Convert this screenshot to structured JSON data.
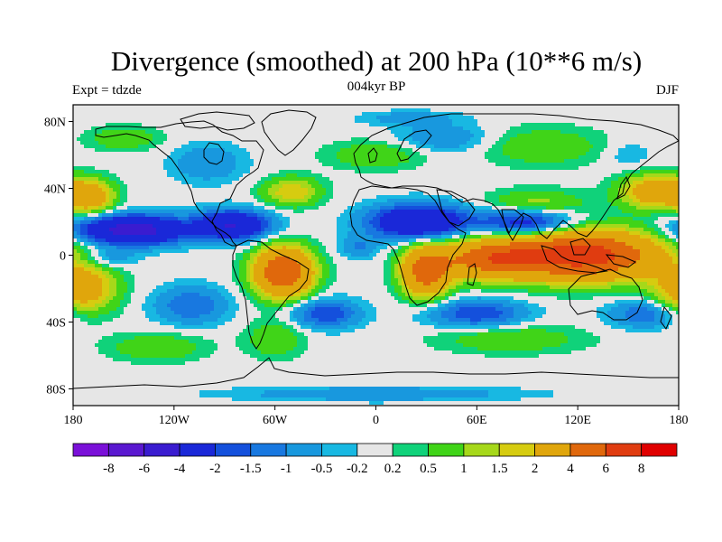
{
  "figure": {
    "title": "Divergence (smoothed) at 200 hPa (10**6 m/s)",
    "subtitle": "004kyr BP",
    "left_label": "Expt = tdzde",
    "right_label": "DJF"
  },
  "map": {
    "lat_ticks": [
      {
        "lat": 80,
        "label": "80N"
      },
      {
        "lat": 40,
        "label": "40N"
      },
      {
        "lat": 0,
        "label": "0"
      },
      {
        "lat": -40,
        "label": "40S"
      },
      {
        "lat": -80,
        "label": "80S"
      }
    ],
    "lon_ticks": [
      {
        "lon": -180,
        "label": "180"
      },
      {
        "lon": -120,
        "label": "120W"
      },
      {
        "lon": -60,
        "label": "60W"
      },
      {
        "lon": 0,
        "label": "0"
      },
      {
        "lon": 60,
        "label": "60E"
      },
      {
        "lon": 120,
        "label": "120E"
      },
      {
        "lon": 180,
        "label": "180"
      }
    ]
  },
  "colorbar": {
    "colors": [
      "#7a10d8",
      "#5a18d0",
      "#3a1cd0",
      "#1a28d8",
      "#1450dc",
      "#1878e0",
      "#1898de",
      "#18b8e2",
      "#e6e6e6",
      "#10d27a",
      "#40d418",
      "#a6d81a",
      "#d6cc10",
      "#e0a60c",
      "#e0680c",
      "#e03c10",
      "#e00000"
    ],
    "labels": [
      "-8",
      "-6",
      "-4",
      "-2",
      "-1.5",
      "-1",
      "-0.5",
      "-0.2",
      "0.2",
      "0.5",
      "1",
      "1.5",
      "2",
      "4",
      "6",
      "8"
    ]
  },
  "chart_data": {
    "type": "heatmap",
    "title": "Divergence (smoothed) at 200 hPa (10**6 m/s)",
    "subtitle": "004kyr BP",
    "season": "DJF",
    "experiment": "tdzde",
    "units": "10**6 m/s",
    "xlim": [
      -180,
      180
    ],
    "ylim": [
      -90,
      90
    ],
    "contour_levels": [
      -8,
      -6,
      -4,
      -2,
      -1.5,
      -1,
      -0.5,
      -0.2,
      0.2,
      0.5,
      1,
      1.5,
      2,
      4,
      6,
      8
    ],
    "features": [
      {
        "lon": 125,
        "lat": 0,
        "value": 7,
        "sx": 30,
        "sy": 10
      },
      {
        "lon": 70,
        "lat": -2,
        "value": 5,
        "sx": 22,
        "sy": 8
      },
      {
        "lon": 30,
        "lat": -10,
        "value": 5,
        "sx": 10,
        "sy": 10
      },
      {
        "lon": -55,
        "lat": -10,
        "value": 6,
        "sx": 12,
        "sy": 10
      },
      {
        "lon": -175,
        "lat": -20,
        "value": 3,
        "sx": 14,
        "sy": 10
      },
      {
        "lon": 165,
        "lat": 38,
        "value": 3,
        "sx": 14,
        "sy": 7
      },
      {
        "lon": -170,
        "lat": 35,
        "value": 3,
        "sx": 10,
        "sy": 7
      },
      {
        "lon": -50,
        "lat": 38,
        "value": 2,
        "sx": 12,
        "sy": 6
      },
      {
        "lon": 95,
        "lat": 30,
        "value": 1.5,
        "sx": 20,
        "sy": 6
      },
      {
        "lon": 0,
        "lat": 60,
        "value": 1,
        "sx": 20,
        "sy": 6
      },
      {
        "lon": 100,
        "lat": 65,
        "value": 1,
        "sx": 25,
        "sy": 8
      },
      {
        "lon": -150,
        "lat": 70,
        "value": 1,
        "sx": 15,
        "sy": 5
      },
      {
        "lon": -60,
        "lat": -50,
        "value": 1,
        "sx": 12,
        "sy": 8
      },
      {
        "lon": -130,
        "lat": -55,
        "value": 1,
        "sx": 20,
        "sy": 6
      },
      {
        "lon": 80,
        "lat": -50,
        "value": 1,
        "sx": 30,
        "sy": 6
      },
      {
        "lon": -145,
        "lat": 15,
        "value": -5,
        "sx": 22,
        "sy": 6
      },
      {
        "lon": -85,
        "lat": 18,
        "value": -4,
        "sx": 15,
        "sy": 6
      },
      {
        "lon": 25,
        "lat": 20,
        "value": -4,
        "sx": 20,
        "sy": 7
      },
      {
        "lon": 90,
        "lat": 20,
        "value": -3,
        "sx": 20,
        "sy": 6
      },
      {
        "lon": -110,
        "lat": -30,
        "value": -1.5,
        "sx": 15,
        "sy": 8
      },
      {
        "lon": -30,
        "lat": -35,
        "value": -2,
        "sx": 14,
        "sy": 6
      },
      {
        "lon": 60,
        "lat": -35,
        "value": -2,
        "sx": 20,
        "sy": 6
      },
      {
        "lon": 160,
        "lat": -35,
        "value": -1.5,
        "sx": 15,
        "sy": 6
      },
      {
        "lon": -10,
        "lat": 5,
        "value": -1,
        "sx": 8,
        "sy": 5
      },
      {
        "lon": -160,
        "lat": -2,
        "value": -1,
        "sx": 12,
        "sy": 4
      },
      {
        "lon": -100,
        "lat": 55,
        "value": -1,
        "sx": 15,
        "sy": 8
      },
      {
        "lon": 40,
        "lat": 70,
        "value": -1,
        "sx": 20,
        "sy": 6
      },
      {
        "lon": 150,
        "lat": 60,
        "value": -0.5,
        "sx": 10,
        "sy": 6
      },
      {
        "lon": 20,
        "lat": 82,
        "value": -0.8,
        "sx": 20,
        "sy": 3
      },
      {
        "lon": 0,
        "lat": -83,
        "value": -1,
        "sx": 60,
        "sy": 3
      }
    ]
  }
}
